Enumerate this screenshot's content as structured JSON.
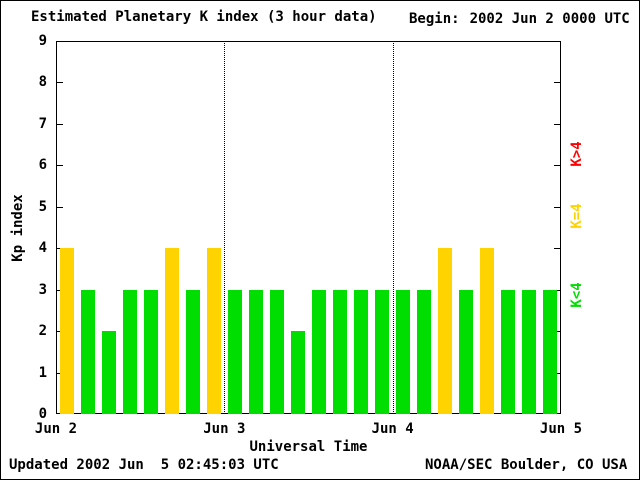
{
  "title": "Estimated Planetary K index (3 hour data)",
  "begin_label": "Begin:",
  "begin_value": "2002 Jun 2 0000 UTC",
  "footer": {
    "updated": "Updated 2002 Jun  5 02:45:03 UTC",
    "credit": "NOAA/SEC Boulder, CO USA"
  },
  "chart_data": {
    "type": "bar",
    "title": "Estimated Planetary K index (3 hour data)",
    "xlabel": "Universal Time",
    "ylabel": "Kp index",
    "ylim": [
      0,
      9
    ],
    "yticks": [
      0,
      1,
      2,
      3,
      4,
      5,
      6,
      7,
      8,
      9
    ],
    "xticklabels": [
      "Jun 2",
      "Jun 3",
      "Jun 4",
      "Jun 5"
    ],
    "bar_interval_hours": 3,
    "x_range_hours": [
      0,
      72
    ],
    "grid": "dotted vertical lines at day boundaries (Jun 3, Jun 4)",
    "legend_position": "right side, rotated 90deg",
    "values": [
      4,
      3,
      2,
      3,
      3,
      4,
      3,
      4,
      3,
      3,
      3,
      2,
      3,
      3,
      3,
      3,
      3,
      3,
      4,
      3,
      4,
      3,
      3,
      3
    ],
    "colors": {
      "low": "#00dd00",
      "mid": "#ffd300",
      "high": "#ff0000"
    },
    "legend": [
      {
        "label": "K>4",
        "color": "#ff0000"
      },
      {
        "label": "K=4",
        "color": "#ffd300"
      },
      {
        "label": "K<4",
        "color": "#00dd00"
      }
    ]
  }
}
